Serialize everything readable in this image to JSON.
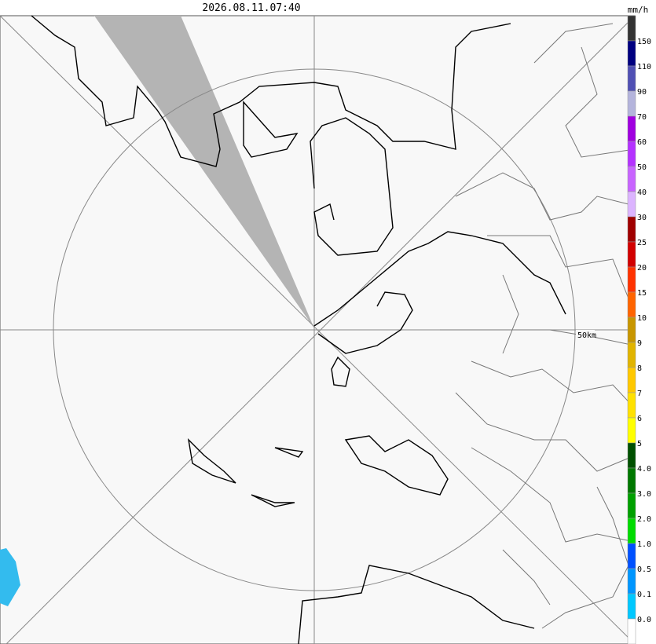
{
  "header": {
    "timestamp": "2026.08.11.07:40"
  },
  "map": {
    "range_label": "50km"
  },
  "legend": {
    "unit": "mm/h",
    "labels": [
      "150",
      "110",
      "90",
      "70",
      "60",
      "50",
      "40",
      "30",
      "25",
      "20",
      "15",
      "10",
      "9",
      "8",
      "7",
      "6",
      "5",
      "4.0",
      "3.0",
      "2.0",
      "1.0",
      "0.5",
      "0.1",
      "0.0"
    ],
    "colors": [
      "#333333",
      "#000080",
      "#5050b4",
      "#b4b4dc",
      "#a000e0",
      "#b432ff",
      "#c864ff",
      "#dcb4ff",
      "#a00000",
      "#d20000",
      "#ff3200",
      "#ff6400",
      "#c89600",
      "#e1b400",
      "#ffc800",
      "#ffe100",
      "#ffff00",
      "#005000",
      "#007800",
      "#00a000",
      "#00dc00",
      "#0050ff",
      "#0096ff",
      "#00c8ff",
      "#ffffff"
    ]
  }
}
